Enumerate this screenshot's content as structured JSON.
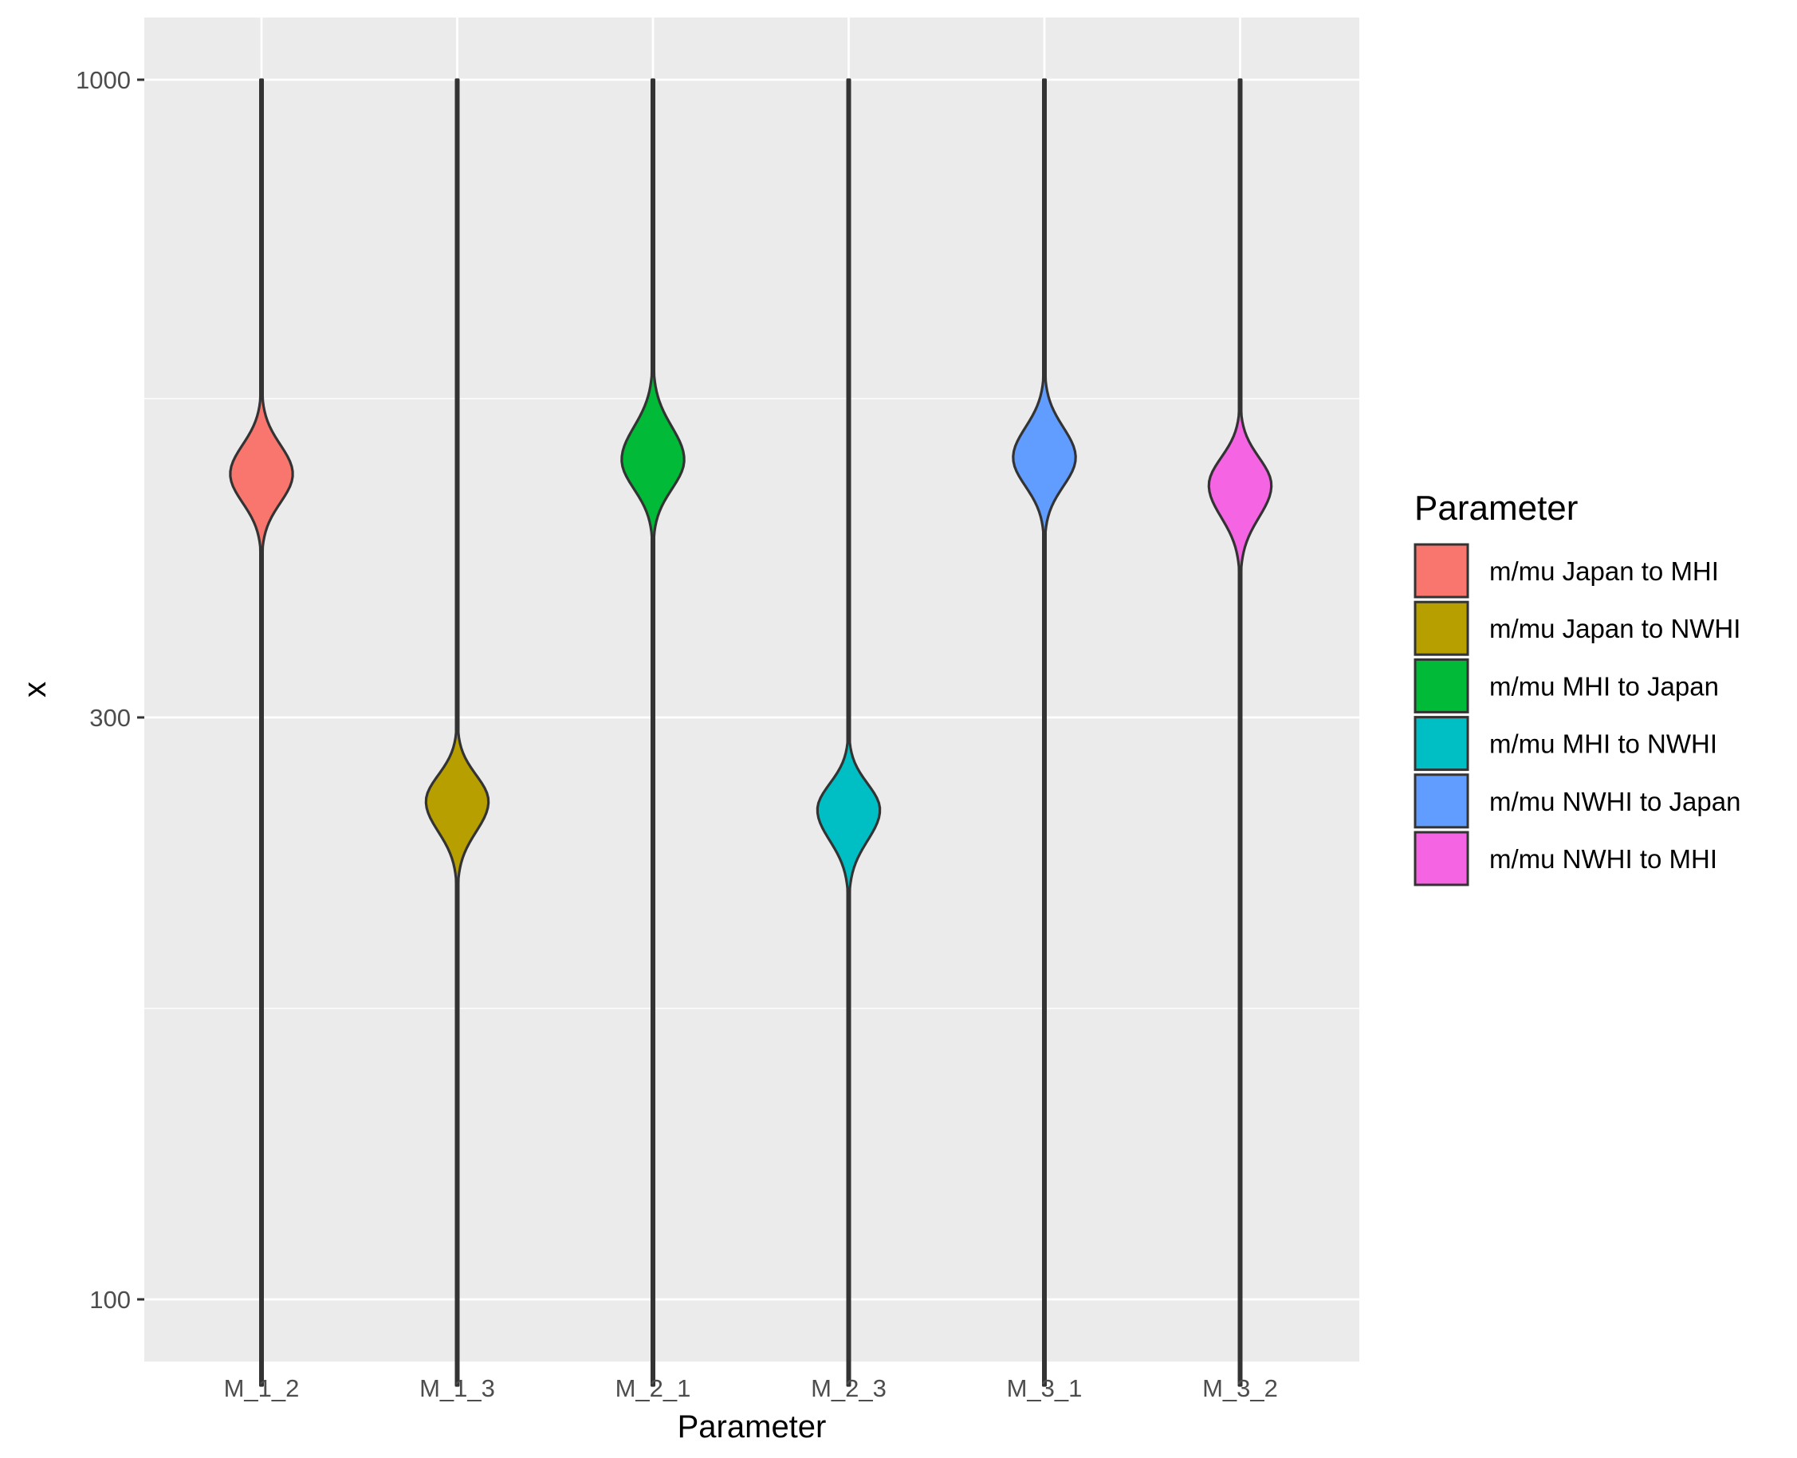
{
  "chart_data": {
    "type": "violin",
    "xlabel": "Parameter",
    "ylabel": "x",
    "y_scale": "log10",
    "ylim": [
      85,
      1250
    ],
    "y_ticks": [
      {
        "value": 100,
        "label": "100"
      },
      {
        "value": 300,
        "label": "300"
      },
      {
        "value": 1000,
        "label": "1000"
      }
    ],
    "y_minor_gridlines": [
      173.2,
      547.7
    ],
    "categories": [
      "M_1_2",
      "M_1_3",
      "M_2_1",
      "M_2_3",
      "M_3_1",
      "M_3_2"
    ],
    "series": [
      {
        "category": "M_1_2",
        "name": "m/mu Japan to MHI",
        "color": "#F8766D",
        "min": 85,
        "max": 1000,
        "peak": 475,
        "peak_low": 415,
        "peak_high": 545
      },
      {
        "category": "M_1_3",
        "name": "m/mu Japan to NWHI",
        "color": "#B79F00",
        "min": 85,
        "max": 1000,
        "peak": 256,
        "peak_low": 222,
        "peak_high": 290
      },
      {
        "category": "M_2_1",
        "name": "m/mu MHI to Japan",
        "color": "#00BA38",
        "min": 85,
        "max": 1000,
        "peak": 488,
        "peak_low": 425,
        "peak_high": 570
      },
      {
        "category": "M_2_3",
        "name": "m/mu MHI to NWHI",
        "color": "#00BFC4",
        "min": 85,
        "max": 1000,
        "peak": 252,
        "peak_low": 218,
        "peak_high": 285
      },
      {
        "category": "M_3_1",
        "name": "m/mu NWHI to Japan",
        "color": "#619CFF",
        "min": 85,
        "max": 1000,
        "peak": 490,
        "peak_low": 428,
        "peak_high": 565
      },
      {
        "category": "M_3_2",
        "name": "m/mu NWHI to MHI",
        "color": "#F564E3",
        "min": 85,
        "max": 1000,
        "peak": 465,
        "peak_low": 400,
        "peak_high": 530
      }
    ],
    "legend": {
      "title": "Parameter",
      "position": "right",
      "entries": [
        "m/mu Japan to MHI",
        "m/mu Japan to NWHI",
        "m/mu MHI to Japan",
        "m/mu MHI to NWHI",
        "m/mu NWHI to Japan",
        "m/mu NWHI to MHI"
      ]
    },
    "grid": true,
    "panel_background": "#EBEBEB",
    "gridline_color": "#FFFFFF",
    "outline_color": "#333333"
  }
}
